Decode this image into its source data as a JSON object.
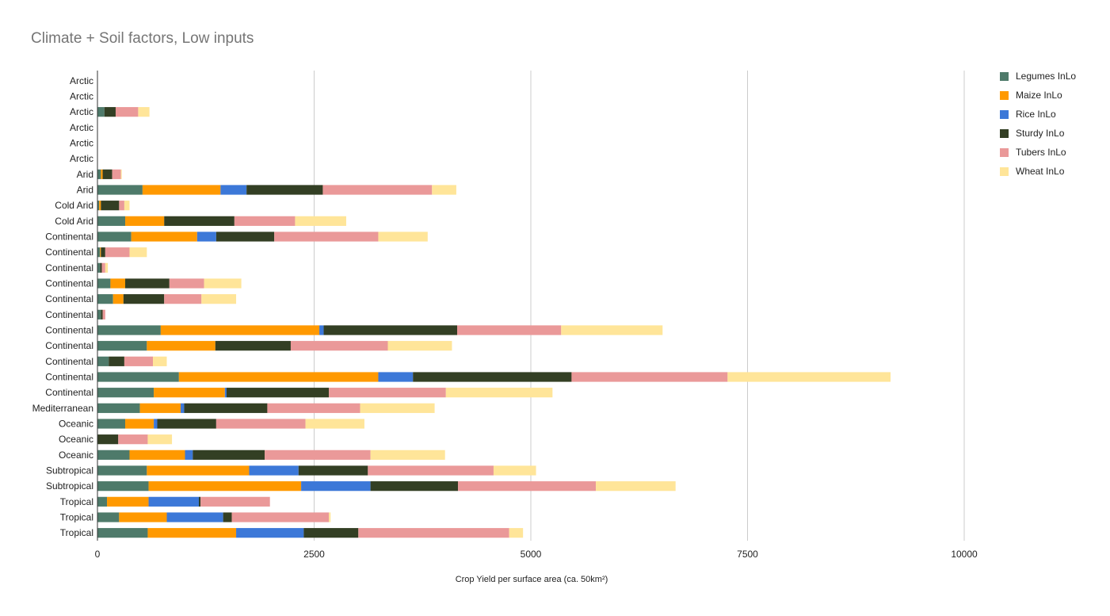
{
  "chart_data": {
    "type": "bar",
    "orientation": "horizontal",
    "stacked": true,
    "title": "Climate + Soil factors, Low inputs",
    "xlabel": "Crop Yield  per surface area (ca. 50km²)",
    "ylabel": "",
    "xlim": [
      0,
      11000
    ],
    "xticks": [
      0,
      2500,
      5000,
      7500,
      10000
    ],
    "grid": true,
    "legend_position": "right",
    "categories": [
      "Arctic",
      "Arctic",
      "Arctic",
      "Arctic",
      "Arctic",
      "Arctic",
      "Arid",
      "Arid",
      "Cold Arid",
      "Cold Arid",
      "Continental",
      "Continental",
      "Continental",
      "Continental",
      "Continental",
      "Continental",
      "Continental",
      "Continental",
      "Continental",
      "Continental",
      "Continental",
      "Mediterranean",
      "Oceanic",
      "Oceanic",
      "Oceanic",
      "Subtropical",
      "Subtropical",
      "Tropical",
      "Tropical",
      "Tropical"
    ],
    "series": [
      {
        "name": "Legumes InLo",
        "color": "#4e7a6a",
        "values": [
          0,
          0,
          80,
          0,
          0,
          0,
          40,
          520,
          20,
          320,
          390,
          30,
          30,
          150,
          180,
          40,
          730,
          570,
          130,
          940,
          650,
          490,
          320,
          0,
          370,
          570,
          590,
          110,
          250,
          580
        ]
      },
      {
        "name": "Maize InLo",
        "color": "#ff9900",
        "values": [
          0,
          0,
          0,
          0,
          0,
          0,
          20,
          900,
          20,
          450,
          760,
          10,
          0,
          170,
          120,
          0,
          1830,
          790,
          0,
          2300,
          820,
          470,
          330,
          0,
          640,
          1180,
          1760,
          480,
          550,
          1020
        ]
      },
      {
        "name": "Rice InLo",
        "color": "#3c78d8",
        "values": [
          0,
          0,
          0,
          0,
          0,
          0,
          0,
          300,
          0,
          0,
          220,
          0,
          0,
          0,
          0,
          0,
          50,
          0,
          0,
          400,
          20,
          40,
          40,
          0,
          90,
          570,
          800,
          580,
          650,
          780
        ]
      },
      {
        "name": "Sturdy InLo",
        "color": "#333f24",
        "values": [
          0,
          0,
          130,
          0,
          0,
          0,
          110,
          880,
          210,
          810,
          670,
          50,
          20,
          510,
          470,
          20,
          1540,
          870,
          180,
          1830,
          1180,
          960,
          680,
          240,
          830,
          800,
          1010,
          20,
          100,
          630
        ]
      },
      {
        "name": "Tubers InLo",
        "color": "#ea9999",
        "values": [
          0,
          0,
          260,
          0,
          0,
          0,
          100,
          1260,
          60,
          700,
          1200,
          280,
          40,
          400,
          430,
          30,
          1200,
          1120,
          330,
          1800,
          1350,
          1070,
          1030,
          340,
          1220,
          1450,
          1590,
          800,
          1120,
          1740
        ]
      },
      {
        "name": "Wheat InLo",
        "color": "#ffe599",
        "values": [
          0,
          0,
          130,
          0,
          0,
          0,
          10,
          280,
          60,
          590,
          570,
          200,
          30,
          430,
          400,
          0,
          1170,
          740,
          160,
          1880,
          1230,
          860,
          680,
          280,
          860,
          490,
          920,
          0,
          20,
          160
        ]
      }
    ]
  }
}
